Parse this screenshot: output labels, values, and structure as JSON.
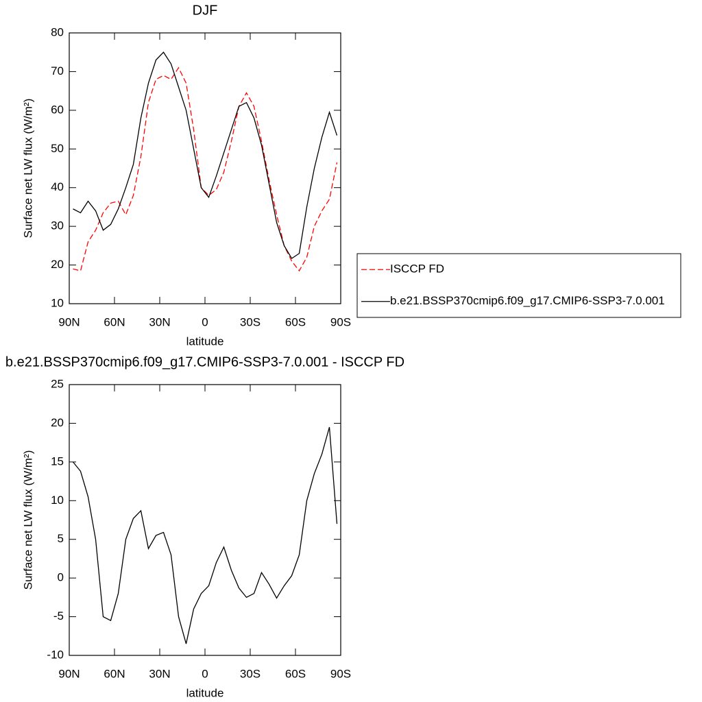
{
  "chart_data": [
    {
      "type": "line",
      "title": "DJF",
      "x_label": "latitude",
      "y_label": "Surface net LW flux (W/m²)",
      "xlim": [
        90,
        -90
      ],
      "ylim": [
        10,
        80
      ],
      "xticks": [
        {
          "value": 90,
          "label": "90N"
        },
        {
          "value": 60,
          "label": "60N"
        },
        {
          "value": 30,
          "label": "30N"
        },
        0,
        {
          "value": -30,
          "label": "30S"
        },
        {
          "value": -60,
          "label": "60S"
        },
        {
          "value": -90,
          "label": "90S"
        }
      ],
      "yticks": [
        10,
        20,
        30,
        40,
        50,
        60,
        70,
        80
      ],
      "legend": "right",
      "x": [
        87.5,
        82.5,
        77.5,
        72.5,
        67.5,
        62.5,
        57.5,
        52.5,
        47.5,
        42.5,
        37.5,
        32.5,
        27.5,
        22.5,
        17.5,
        12.5,
        7.5,
        2.5,
        -2.5,
        -7.5,
        -12.5,
        -17.5,
        -22.5,
        -27.5,
        -32.5,
        -37.5,
        -42.5,
        -47.5,
        -52.5,
        -57.5,
        -62.5,
        -67.5,
        -72.5,
        -77.5,
        -82.5,
        -87.5
      ],
      "series": [
        {
          "name": "ISCCP FD",
          "color": "#ff0000",
          "dashed": true,
          "values": [
            19,
            18.5,
            26,
            29,
            33.5,
            36,
            36.5,
            33,
            38,
            48,
            62,
            68,
            69,
            68,
            71,
            67,
            55,
            40,
            38,
            39.5,
            44,
            52,
            61,
            64.5,
            61,
            52,
            42,
            33,
            25,
            21,
            18.5,
            22,
            30,
            34,
            37,
            46.5
          ]
        },
        {
          "name": "b.e21.BSSP370cmip6.f09_g17.CMIP6-SSP3-7.0.001",
          "color": "#000000",
          "dashed": false,
          "values": [
            34.5,
            33.5,
            36.5,
            34,
            29,
            30.5,
            34.5,
            40,
            46,
            58,
            67,
            73,
            75,
            72,
            66,
            60,
            50,
            40,
            37.5,
            43,
            49,
            55,
            61,
            62,
            58,
            51,
            41,
            31,
            25,
            21.7,
            23,
            35,
            45,
            53,
            59.5,
            53.5
          ]
        }
      ]
    },
    {
      "type": "line",
      "title": "b.e21.BSSP370cmip6.f09_g17.CMIP6-SSP3-7.0.001 - ISCCP FD",
      "x_label": "latitude",
      "y_label": "Surface net LW flux (W/m²)",
      "xlim": [
        90,
        -90
      ],
      "ylim": [
        -10,
        25
      ],
      "xticks": [
        {
          "value": 90,
          "label": "90N"
        },
        {
          "value": 60,
          "label": "60N"
        },
        {
          "value": 30,
          "label": "30N"
        },
        0,
        {
          "value": -30,
          "label": "30S"
        },
        {
          "value": -60,
          "label": "60S"
        },
        {
          "value": -90,
          "label": "90S"
        }
      ],
      "yticks": [
        -10,
        -5,
        0,
        5,
        10,
        15,
        20,
        25
      ],
      "x": [
        87.5,
        82.5,
        77.5,
        72.5,
        67.5,
        62.5,
        57.5,
        52.5,
        47.5,
        42.5,
        37.5,
        32.5,
        27.5,
        22.5,
        17.5,
        12.5,
        7.5,
        2.5,
        -2.5,
        -7.5,
        -12.5,
        -17.5,
        -22.5,
        -27.5,
        -32.5,
        -37.5,
        -42.5,
        -47.5,
        -52.5,
        -57.5,
        -62.5,
        -67.5,
        -72.5,
        -77.5,
        -82.5,
        -87.5
      ],
      "series": [
        {
          "color": "#000000",
          "dashed": false,
          "values": [
            15,
            13.8,
            10.5,
            5,
            -5,
            -5.5,
            -2,
            5,
            7.7,
            8.7,
            3.8,
            5.5,
            5.9,
            3,
            -5,
            -8.5,
            -4,
            -2,
            -1,
            2,
            4,
            1,
            -1.3,
            -2.5,
            -2,
            0.7,
            -0.8,
            -2.6,
            -1,
            0.3,
            3,
            10,
            13.5,
            16,
            19.5,
            7
          ]
        }
      ]
    }
  ]
}
